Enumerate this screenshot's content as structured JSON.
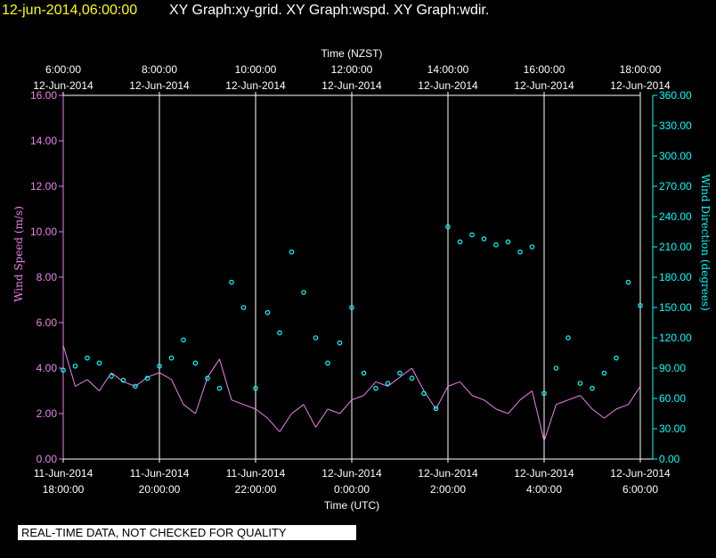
{
  "header": {
    "timestamp": "12-jun-2014,06:00:00",
    "graphs": "XY Graph:xy-grid.  XY Graph:wspd.  XY Graph:wdir."
  },
  "footer": {
    "disclaimer": "REAL-TIME DATA, NOT CHECKED FOR QUALITY"
  },
  "colors": {
    "background": "#000000",
    "timestamp_text": "#ffff00",
    "title_text": "#ffffff",
    "speed": "#ee82ee",
    "direction": "#00ffff",
    "grid": "#ffffff"
  },
  "chart_data": {
    "type": "line",
    "xlabel_top": "Time (NZST)",
    "xlabel_bottom": "Time (UTC)",
    "ylabel_left": "Wind Speed (m/s)",
    "ylabel_right": "Wind Direction (degrees)",
    "x_range_hours": [
      0,
      12
    ],
    "top_ticks": [
      {
        "h": 0,
        "time": "6:00:00",
        "date": "12-Jun-2014"
      },
      {
        "h": 2,
        "time": "8:00:00",
        "date": "12-Jun-2014"
      },
      {
        "h": 4,
        "time": "10:00:00",
        "date": "12-Jun-2014"
      },
      {
        "h": 6,
        "time": "12:00:00",
        "date": "12-Jun-2014"
      },
      {
        "h": 8,
        "time": "14:00:00",
        "date": "12-Jun-2014"
      },
      {
        "h": 10,
        "time": "16:00:00",
        "date": "12-Jun-2014"
      },
      {
        "h": 12,
        "time": "18:00:00",
        "date": "12-Jun-2014"
      }
    ],
    "bottom_ticks": [
      {
        "h": 0,
        "date": "11-Jun-2014",
        "time": "18:00:00"
      },
      {
        "h": 2,
        "date": "11-Jun-2014",
        "time": "20:00:00"
      },
      {
        "h": 4,
        "date": "11-Jun-2014",
        "time": "22:00:00"
      },
      {
        "h": 6,
        "date": "12-Jun-2014",
        "time": "0:00:00"
      },
      {
        "h": 8,
        "date": "12-Jun-2014",
        "time": "2:00:00"
      },
      {
        "h": 10,
        "date": "12-Jun-2014",
        "time": "4:00:00"
      },
      {
        "h": 12,
        "date": "12-Jun-2014",
        "time": "6:00:00"
      }
    ],
    "speed_axis": {
      "min": 0,
      "max": 16,
      "step": 2,
      "labels": [
        "0.00",
        "2.00",
        "4.00",
        "6.00",
        "8.00",
        "10.00",
        "12.00",
        "14.00",
        "16.00"
      ]
    },
    "direction_axis": {
      "min": 0,
      "max": 360,
      "step": 30,
      "labels": [
        "0.00",
        "30.00",
        "60.00",
        "90.00",
        "120.00",
        "150.00",
        "180.00",
        "210.00",
        "240.00",
        "270.00",
        "300.00",
        "330.00",
        "360.00"
      ]
    },
    "series": [
      {
        "key": "wspd",
        "style": "line",
        "x": [
          0,
          0.25,
          0.5,
          0.75,
          1,
          1.25,
          1.5,
          1.75,
          2,
          2.25,
          2.5,
          2.75,
          3,
          3.25,
          3.5,
          3.75,
          4,
          4.25,
          4.5,
          4.75,
          5,
          5.25,
          5.5,
          5.75,
          6,
          6.25,
          6.5,
          6.75,
          7,
          7.25,
          7.5,
          7.75,
          8,
          8.25,
          8.5,
          8.75,
          9,
          9.25,
          9.5,
          9.75,
          10,
          10.25,
          10.5,
          10.75,
          11,
          11.25,
          11.5,
          11.75,
          12
        ],
        "values": [
          5.0,
          3.2,
          3.5,
          3.0,
          3.8,
          3.4,
          3.2,
          3.6,
          3.8,
          3.5,
          2.4,
          2.0,
          3.6,
          4.4,
          2.6,
          2.4,
          2.2,
          1.8,
          1.2,
          2.0,
          2.4,
          1.4,
          2.2,
          2.0,
          2.6,
          2.8,
          3.4,
          3.2,
          3.6,
          4.0,
          3.0,
          2.2,
          3.2,
          3.4,
          2.8,
          2.6,
          2.2,
          2.0,
          2.6,
          3.0,
          0.8,
          2.4,
          2.6,
          2.8,
          2.2,
          1.8,
          2.2,
          2.4,
          3.2
        ]
      },
      {
        "key": "wdir",
        "style": "markers",
        "x": [
          0,
          0.25,
          0.5,
          0.75,
          1,
          1.25,
          1.5,
          1.75,
          2,
          2.25,
          2.5,
          2.75,
          3,
          3.25,
          3.5,
          3.75,
          4,
          4.25,
          4.5,
          4.75,
          5,
          5.25,
          5.5,
          5.75,
          6,
          6.25,
          6.5,
          6.75,
          7,
          7.25,
          7.5,
          7.75,
          8,
          8.25,
          8.5,
          8.75,
          9,
          9.25,
          9.5,
          9.75,
          10,
          10.25,
          10.5,
          10.75,
          11,
          11.25,
          11.5,
          11.75,
          12
        ],
        "values": [
          88,
          92,
          100,
          95,
          82,
          78,
          72,
          80,
          92,
          100,
          118,
          95,
          80,
          70,
          175,
          150,
          70,
          145,
          125,
          205,
          165,
          120,
          95,
          115,
          150,
          85,
          70,
          75,
          85,
          80,
          65,
          50,
          230,
          215,
          222,
          218,
          212,
          215,
          205,
          210,
          65,
          90,
          120,
          75,
          70,
          85,
          100,
          175,
          152
        ]
      }
    ]
  }
}
